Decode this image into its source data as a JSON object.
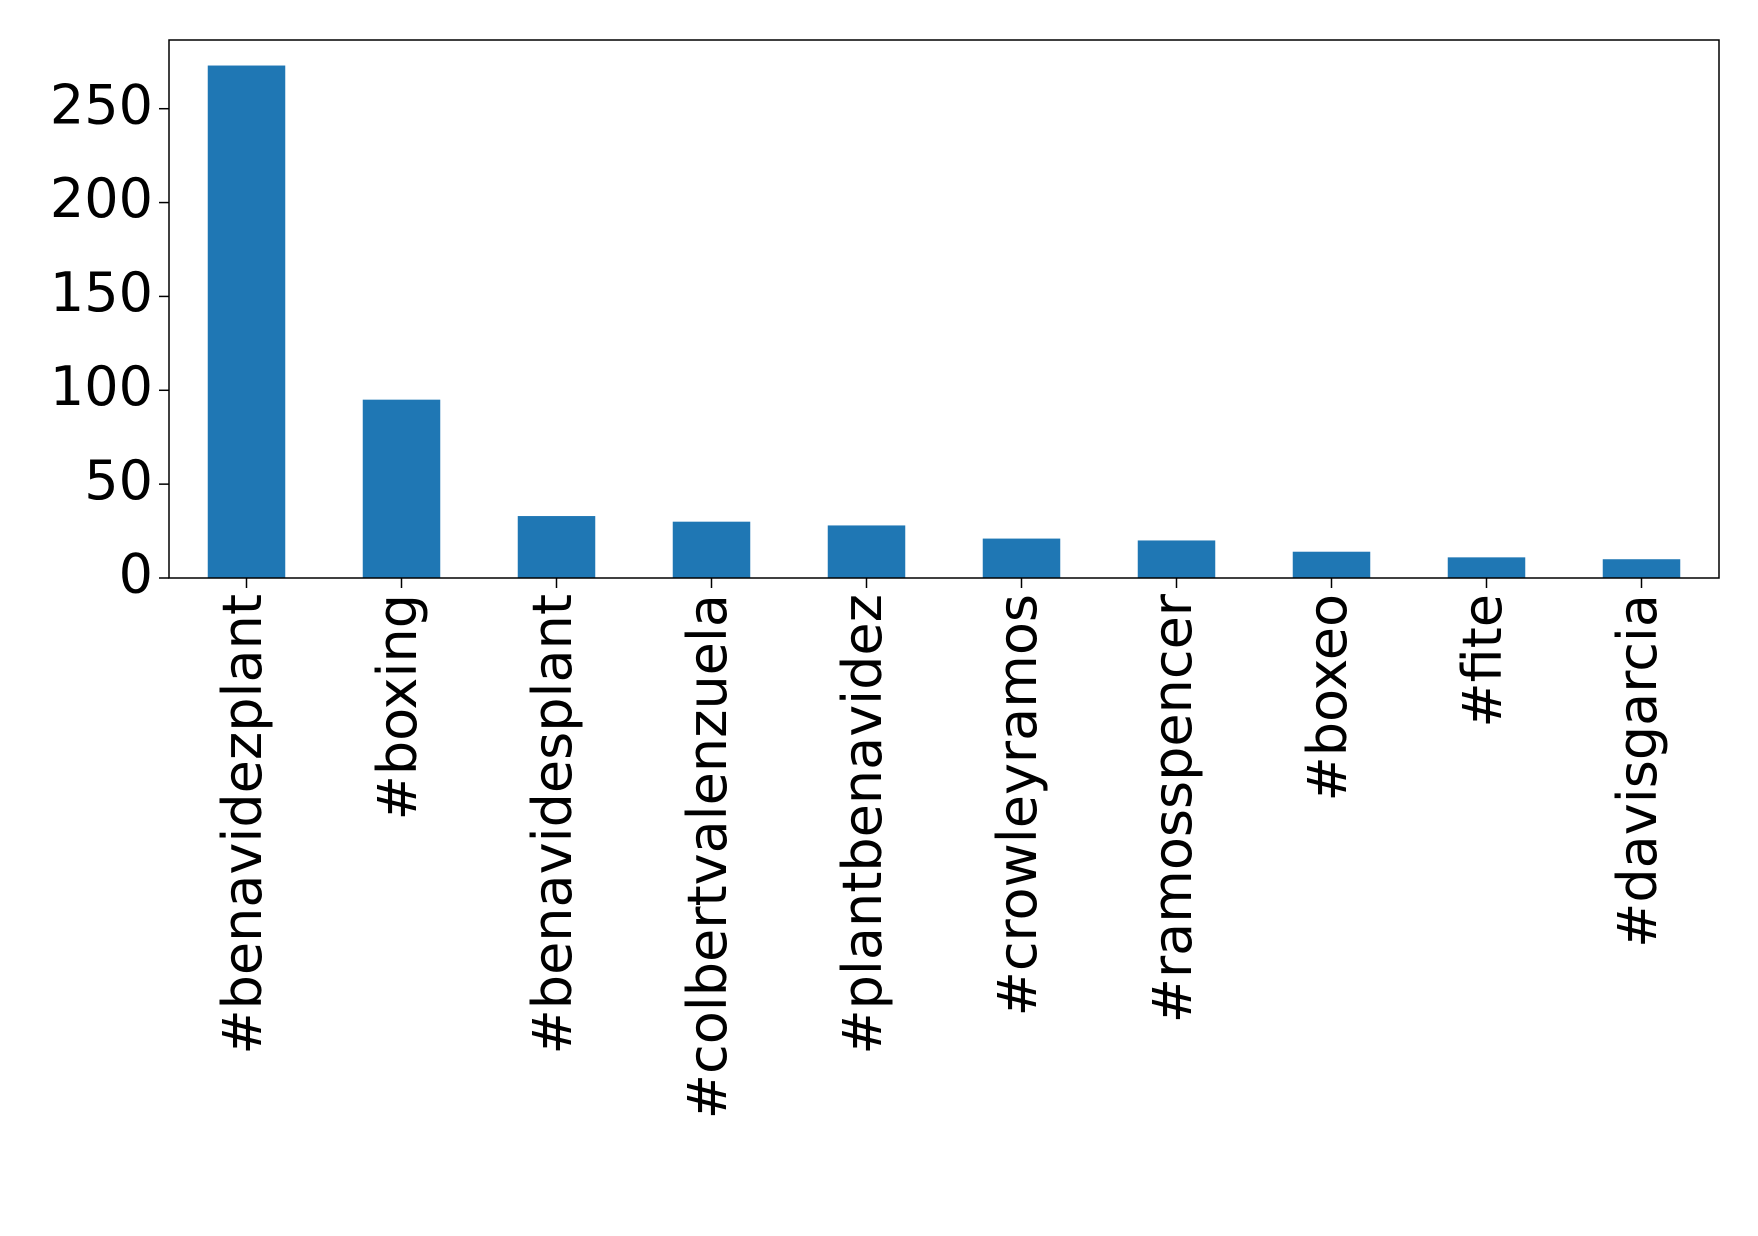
{
  "chart_data": {
    "type": "bar",
    "categories": [
      "#benavidezplant",
      "#boxing",
      "#benavidesplant",
      "#colbertvalenzuela",
      "#plantbenavidez",
      "#crowleyramos",
      "#ramosspencer",
      "#boxeo",
      "#fite",
      "#davisgarcia"
    ],
    "values": [
      273,
      95,
      33,
      30,
      28,
      21,
      20,
      14,
      11,
      10
    ],
    "color": "#1f77b4",
    "ylim": [
      0,
      286.6
    ],
    "yticks": [
      0,
      50,
      100,
      150,
      200,
      250
    ],
    "grid": false
  }
}
